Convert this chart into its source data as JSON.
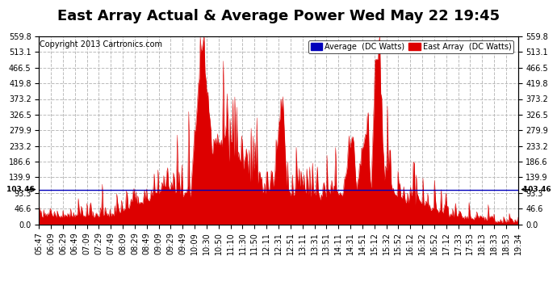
{
  "title": "East Array Actual & Average Power Wed May 22 19:45",
  "copyright": "Copyright 2013 Cartronics.com",
  "legend_labels": [
    "Average  (DC Watts)",
    "East Array  (DC Watts)"
  ],
  "legend_colors": [
    "#0000bb",
    "#dd0000"
  ],
  "average_line_value": 103.46,
  "average_line_color": "#0000bb",
  "fill_color": "#dd0000",
  "background_color": "#ffffff",
  "plot_bg_color": "#ffffff",
  "grid_color": "#bbbbbb",
  "grid_style": "--",
  "ylim": [
    0.0,
    559.8
  ],
  "yticks": [
    0.0,
    46.6,
    93.3,
    139.9,
    186.6,
    233.2,
    279.9,
    326.5,
    373.2,
    419.8,
    466.5,
    513.1,
    559.8
  ],
  "ytick_labels": [
    "0.0",
    "46.6",
    "93.3",
    "139.9",
    "186.6",
    "233.2",
    "279.9",
    "326.5",
    "373.2",
    "419.8",
    "466.5",
    "513.1",
    "559.8"
  ],
  "xtick_labels": [
    "05:47",
    "06:09",
    "06:29",
    "06:49",
    "07:09",
    "07:29",
    "07:49",
    "08:09",
    "08:29",
    "08:49",
    "09:09",
    "09:29",
    "09:49",
    "10:09",
    "10:30",
    "10:50",
    "11:10",
    "11:30",
    "11:50",
    "12:11",
    "12:31",
    "12:51",
    "13:11",
    "13:31",
    "13:51",
    "14:11",
    "14:31",
    "14:51",
    "15:12",
    "15:32",
    "15:52",
    "16:12",
    "16:32",
    "16:52",
    "17:12",
    "17:33",
    "17:53",
    "18:13",
    "18:33",
    "18:53",
    "19:34"
  ],
  "title_fontsize": 13,
  "copyright_fontsize": 7,
  "axis_fontsize": 7,
  "legend_fontsize": 7,
  "avg_label": "103.46"
}
